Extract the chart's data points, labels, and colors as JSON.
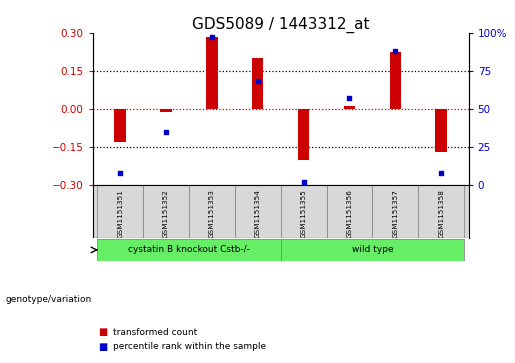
{
  "title": "GDS5089 / 1443312_at",
  "samples": [
    "GSM1151351",
    "GSM1151352",
    "GSM1151353",
    "GSM1151354",
    "GSM1151355",
    "GSM1151356",
    "GSM1151357",
    "GSM1151358"
  ],
  "red_bars": [
    -0.13,
    -0.012,
    0.283,
    0.2,
    -0.2,
    0.01,
    0.225,
    -0.17
  ],
  "blue_dots": [
    8,
    35,
    97,
    68,
    2,
    57,
    88,
    8
  ],
  "group1_label": "cystatin B knockout Cstb-/-",
  "group2_label": "wild type",
  "group1_count": 4,
  "group2_count": 4,
  "genotype_label": "genotype/variation",
  "legend_red": "transformed count",
  "legend_blue": "percentile rank within the sample",
  "ylim_left": [
    -0.3,
    0.3
  ],
  "ylim_right": [
    0,
    100
  ],
  "yticks_left": [
    -0.3,
    -0.15,
    0.0,
    0.15,
    0.3
  ],
  "yticks_right": [
    0,
    25,
    50,
    75,
    100
  ],
  "hlines": [
    -0.15,
    0.0,
    0.15
  ],
  "bar_color": "#CC0000",
  "dot_color": "#0000CC",
  "group_color": "#66EE66",
  "sample_bg": "#D8D8D8",
  "title_fontsize": 11,
  "tick_fontsize": 7.5,
  "label_fontsize": 6,
  "bar_width": 0.25
}
